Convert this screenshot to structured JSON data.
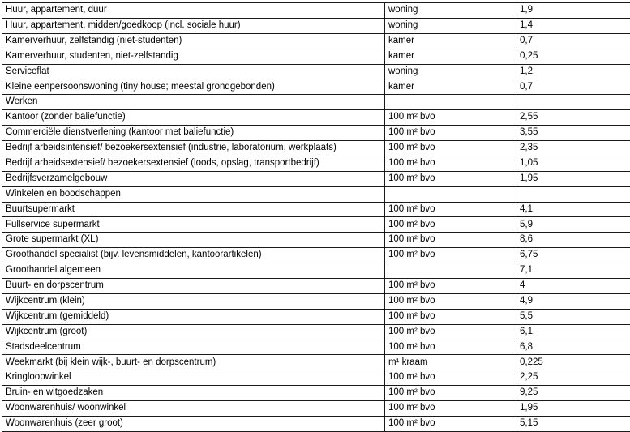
{
  "colors": {
    "border": "#1a1a1a",
    "text": "#000000",
    "background": "#ffffff"
  },
  "table": {
    "columns": [
      "description",
      "unit",
      "value"
    ],
    "rows": [
      {
        "description": "Huur, appartement, duur",
        "unit": "woning",
        "value": "1,9"
      },
      {
        "description": "Huur, appartement, midden/goedkoop (incl. sociale huur)",
        "unit": "woning",
        "value": "1,4"
      },
      {
        "description": "Kamerverhuur, zelfstandig (niet-studenten)",
        "unit": "kamer",
        "value": "0,7"
      },
      {
        "description": "Kamerverhuur, studenten, niet-zelfstandig",
        "unit": "kamer",
        "value": "0,25"
      },
      {
        "description": "Serviceflat",
        "unit": "woning",
        "value": "1,2"
      },
      {
        "description": "Kleine eenpersoonswoning (tiny house; meestal grondgebonden)",
        "unit": "kamer",
        "value": "0,7"
      },
      {
        "description": "Werken",
        "unit": "",
        "value": ""
      },
      {
        "description": "Kantoor (zonder baliefunctie)",
        "unit": "100 m² bvo",
        "value": "2,55"
      },
      {
        "description": "Commerciële dienstverlening (kantoor met baliefunctie)",
        "unit": "100 m² bvo",
        "value": "3,55"
      },
      {
        "description": "Bedrijf arbeidsintensief/ bezoekersextensief (industrie, laboratorium, werkplaats)",
        "unit": "100 m² bvo",
        "value": "2,35"
      },
      {
        "description": "Bedrijf arbeidsextensief/ bezoekersextensief (loods, opslag, transportbedrijf)",
        "unit": "100 m² bvo",
        "value": "1,05"
      },
      {
        "description": "Bedrijfsverzamelgebouw",
        "unit": "100 m² bvo",
        "value": "1,95"
      },
      {
        "description": "Winkelen en boodschappen",
        "unit": "",
        "value": ""
      },
      {
        "description": "Buurtsupermarkt",
        "unit": "100 m² bvo",
        "value": "4,1"
      },
      {
        "description": "Fullservice supermarkt",
        "unit": "100 m² bvo",
        "value": "5,9"
      },
      {
        "description": "Grote supermarkt (XL)",
        "unit": "100 m² bvo",
        "value": "8,6"
      },
      {
        "description": "Groothandel specialist (bijv. levensmiddelen, kantoorartikelen)",
        "unit": "100 m² bvo",
        "value": "6,75"
      },
      {
        "description": "Groothandel algemeen",
        "unit": "",
        "value": "7,1"
      },
      {
        "description": "Buurt- en dorpscentrum",
        "unit": "100 m² bvo",
        "value": "4"
      },
      {
        "description": "Wijkcentrum (klein)",
        "unit": "100 m² bvo",
        "value": "4,9"
      },
      {
        "description": "Wijkcentrum (gemiddeld)",
        "unit": "100 m² bvo",
        "value": "5,5"
      },
      {
        "description": "Wijkcentrum (groot)",
        "unit": "100 m² bvo",
        "value": "6,1"
      },
      {
        "description": "Stadsdeelcentrum",
        "unit": "100 m² bvo",
        "value": "6,8"
      },
      {
        "description": "Weekmarkt (bij klein wijk-, buurt- en dorpscentrum)",
        "unit": "m¹ kraam",
        "value": "0,225"
      },
      {
        "description": "Kringloopwinkel",
        "unit": "100 m² bvo",
        "value": "2,25"
      },
      {
        "description": "Bruin- en witgoedzaken",
        "unit": "100 m² bvo",
        "value": "9,25"
      },
      {
        "description": "Woonwarenhuis/ woonwinkel",
        "unit": "100 m² bvo",
        "value": "1,95"
      },
      {
        "description": "Woonwarenhuis (zeer groot)",
        "unit": "100 m² bvo",
        "value": "5,15"
      }
    ]
  }
}
